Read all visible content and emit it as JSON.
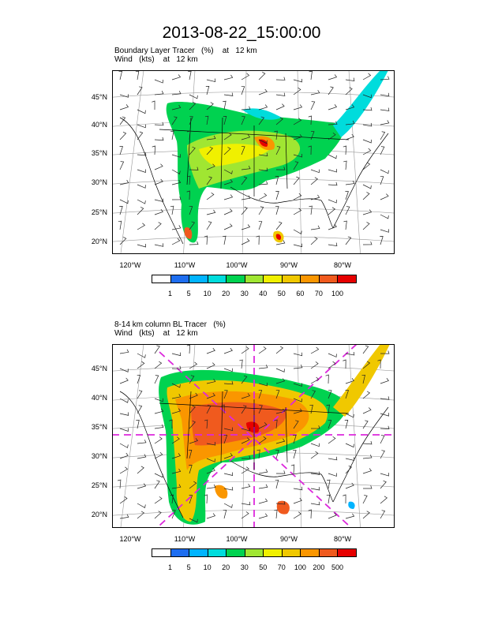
{
  "title": "2013-08-22_15:00:00",
  "panels": [
    {
      "subtitle1": "Boundary Layer Tracer   (%)    at   12 km",
      "subtitle2": "Wind   (kts)    at   12 km",
      "lat_labels": [
        "45°N",
        "40°N",
        "35°N",
        "30°N",
        "25°N",
        "20°N"
      ],
      "lon_labels": [
        "120°W",
        "110°W",
        "100°W",
        "90°W",
        "80°W"
      ],
      "colorbar": {
        "colors": [
          "#ffffff",
          "#1e6ef0",
          "#00b4ff",
          "#00dcdc",
          "#00d250",
          "#a0e632",
          "#f0f000",
          "#f0c800",
          "#fa9600",
          "#f05a1e",
          "#e60000"
        ],
        "labels": [
          "1",
          "5",
          "10",
          "20",
          "30",
          "40",
          "50",
          "60",
          "70",
          "100"
        ]
      }
    },
    {
      "subtitle1": "8-14 km column BL Tracer   (%)",
      "subtitle2": "Wind   (kts)    at   12 km",
      "lat_labels": [
        "45°N",
        "40°N",
        "35°N",
        "30°N",
        "25°N",
        "20°N"
      ],
      "lon_labels": [
        "120°W",
        "110°W",
        "100°W",
        "90°W",
        "80°W"
      ],
      "colorbar": {
        "colors": [
          "#ffffff",
          "#1e6ef0",
          "#00b4ff",
          "#00dcdc",
          "#00d250",
          "#a0e632",
          "#f0f000",
          "#f0c800",
          "#fa9600",
          "#f05a1e",
          "#e60000"
        ],
        "labels": [
          "1",
          "5",
          "10",
          "20",
          "30",
          "50",
          "70",
          "100",
          "200",
          "500"
        ]
      }
    }
  ]
}
